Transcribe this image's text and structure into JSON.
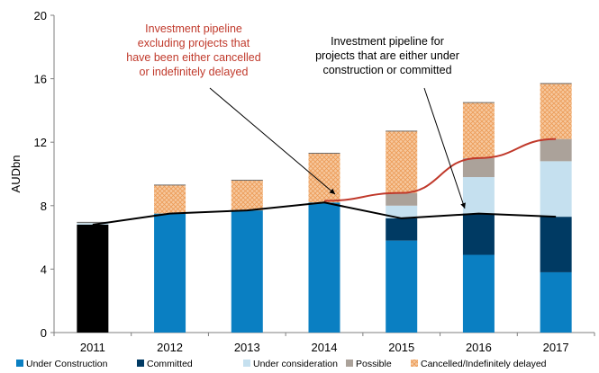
{
  "chart_data": {
    "type": "bar",
    "ylabel": "AUDbn",
    "ylim": [
      0,
      20
    ],
    "yticks": [
      0,
      4,
      8,
      12,
      16,
      20
    ],
    "categories": [
      "2011",
      "2012",
      "2013",
      "2014",
      "2015",
      "2016",
      "2017"
    ],
    "series": [
      {
        "name": "Under Construction",
        "color": "#0a7fc2",
        "values": [
          6.8,
          7.5,
          7.7,
          8.2,
          5.8,
          4.9,
          3.8
        ]
      },
      {
        "name": "Committed",
        "color": "#003a63",
        "values": [
          0,
          0,
          0,
          0,
          1.4,
          2.6,
          3.5
        ]
      },
      {
        "name": "Under consideration",
        "color": "#c5e0ef",
        "values": [
          0.1,
          0,
          0,
          0,
          0.8,
          2.3,
          3.5
        ]
      },
      {
        "name": "Possible",
        "color": "#aba29a",
        "values": [
          0.05,
          0,
          0,
          0,
          0.8,
          1.2,
          1.4
        ]
      },
      {
        "name": "Cancelled/Indefinitely delayed",
        "color": "#f6c89e",
        "values": [
          0,
          1.8,
          1.9,
          3.1,
          3.9,
          3.5,
          3.5
        ]
      }
    ],
    "lines": [
      {
        "color": "#c0392b",
        "values": [
          null,
          null,
          null,
          8.3,
          8.8,
          11.0,
          12.2
        ]
      },
      {
        "color": "#000000",
        "values": [
          6.8,
          7.5,
          7.7,
          8.2,
          7.2,
          7.5,
          7.3
        ]
      }
    ],
    "annotations": [
      {
        "lines": [
          "Investment pipeline",
          "excluding projects that",
          "have  been either cancelled",
          "or indefinitely delayed"
        ],
        "color": "#c0392b"
      },
      {
        "lines": [
          "Investment pipeline for",
          "projects that are either under",
          "construction or committed"
        ],
        "color": "#000000"
      }
    ]
  }
}
